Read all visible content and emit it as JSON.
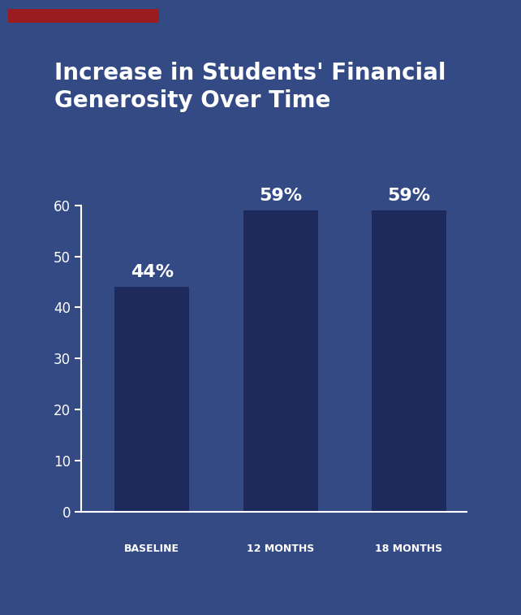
{
  "chart_data": {
    "type": "bar",
    "title": "Increase in Students' Financial Generosity Over Time",
    "categories": [
      "BASELINE",
      "12 MONTHS",
      "18 MONTHS"
    ],
    "values": [
      44,
      59,
      59
    ],
    "value_labels": [
      "44%",
      "59%",
      "59%"
    ],
    "data_labels": true,
    "color": "#1f2a5c",
    "ylim": [
      0,
      60
    ],
    "yticks": [
      0,
      10,
      20,
      30,
      40,
      50,
      60
    ],
    "grid": false
  }
}
